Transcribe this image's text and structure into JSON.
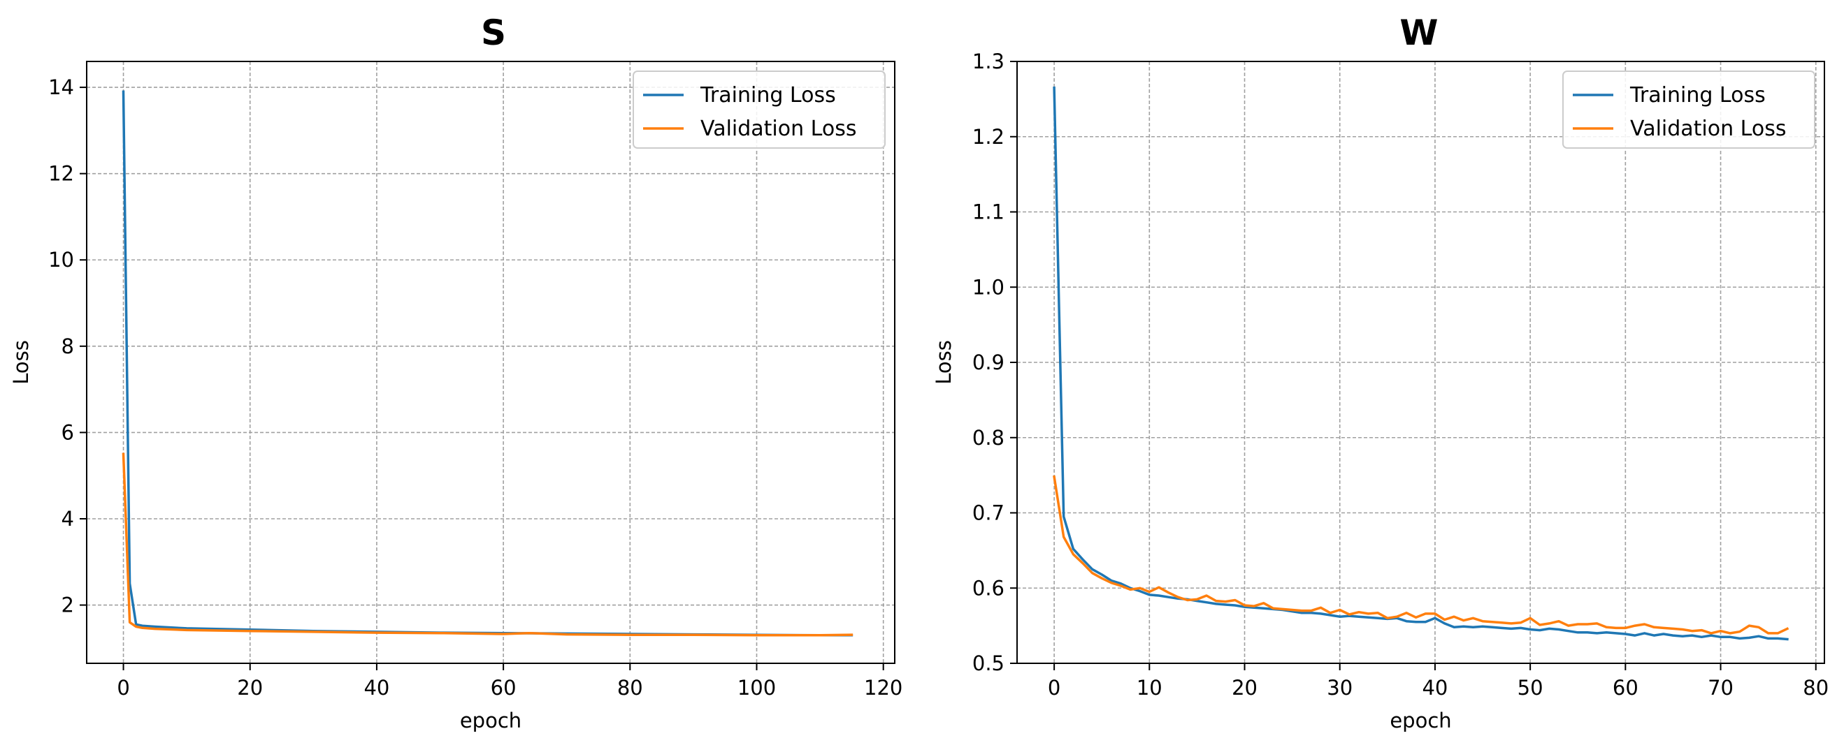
{
  "chart_data": [
    {
      "type": "line",
      "title": "S",
      "xlabel": "epoch",
      "ylabel": "Loss",
      "xlim": [
        -5.8,
        121.8
      ],
      "ylim": [
        0.65,
        14.6
      ],
      "xticks": [
        0,
        20,
        40,
        60,
        80,
        100,
        120
      ],
      "xtick_labels": [
        "0",
        "20",
        "40",
        "60",
        "80",
        "100",
        "120"
      ],
      "yticks": [
        2,
        4,
        6,
        8,
        10,
        12,
        14
      ],
      "ytick_labels": [
        "2",
        "4",
        "6",
        "8",
        "10",
        "12",
        "14"
      ],
      "grid": true,
      "legend_position": "upper right",
      "series": [
        {
          "name": "Training Loss",
          "color": "#1f77b4",
          "x": [
            0,
            1,
            2,
            3,
            5,
            10,
            20,
            30,
            40,
            50,
            60,
            70,
            80,
            90,
            100,
            110,
            115
          ],
          "y": [
            13.9,
            2.5,
            1.55,
            1.52,
            1.5,
            1.46,
            1.43,
            1.4,
            1.38,
            1.36,
            1.35,
            1.34,
            1.33,
            1.32,
            1.31,
            1.3,
            1.3
          ]
        },
        {
          "name": "Validation Loss",
          "color": "#ff7f0e",
          "x": [
            0,
            1,
            2,
            3,
            5,
            10,
            20,
            30,
            40,
            50,
            60,
            64,
            70,
            80,
            90,
            100,
            110,
            115
          ],
          "y": [
            5.5,
            1.6,
            1.5,
            1.47,
            1.45,
            1.42,
            1.4,
            1.38,
            1.36,
            1.35,
            1.33,
            1.35,
            1.32,
            1.31,
            1.31,
            1.3,
            1.3,
            1.31
          ]
        }
      ]
    },
    {
      "type": "line",
      "title": "W",
      "xlabel": "epoch",
      "ylabel": "Loss",
      "xlim": [
        -3.9,
        80.9
      ],
      "ylim": [
        0.5,
        1.3
      ],
      "xticks": [
        0,
        10,
        20,
        30,
        40,
        50,
        60,
        70,
        80
      ],
      "xtick_labels": [
        "0",
        "10",
        "20",
        "30",
        "40",
        "50",
        "60",
        "70",
        "80"
      ],
      "yticks": [
        0.5,
        0.6,
        0.7,
        0.8,
        0.9,
        1.0,
        1.1,
        1.2,
        1.3
      ],
      "ytick_labels": [
        "0.5",
        "0.6",
        "0.7",
        "0.8",
        "0.9",
        "1.0",
        "1.1",
        "1.2",
        "1.3"
      ],
      "grid": true,
      "legend_position": "upper right",
      "series": [
        {
          "name": "Training Loss",
          "color": "#1f77b4",
          "x": [
            0,
            1,
            2,
            3,
            4,
            5,
            6,
            7,
            8,
            9,
            10,
            11,
            12,
            13,
            14,
            15,
            16,
            17,
            18,
            19,
            20,
            21,
            22,
            23,
            24,
            25,
            26,
            27,
            28,
            29,
            30,
            31,
            32,
            33,
            34,
            35,
            36,
            37,
            38,
            39,
            40,
            41,
            42,
            43,
            44,
            45,
            46,
            47,
            48,
            49,
            50,
            51,
            52,
            53,
            54,
            55,
            56,
            57,
            58,
            59,
            60,
            61,
            62,
            63,
            64,
            65,
            66,
            67,
            68,
            69,
            70,
            71,
            72,
            73,
            74,
            75,
            76,
            77
          ],
          "y": [
            1.265,
            0.695,
            0.652,
            0.638,
            0.625,
            0.618,
            0.61,
            0.606,
            0.6,
            0.596,
            0.591,
            0.59,
            0.588,
            0.586,
            0.585,
            0.583,
            0.581,
            0.579,
            0.578,
            0.577,
            0.575,
            0.574,
            0.573,
            0.572,
            0.571,
            0.569,
            0.567,
            0.567,
            0.566,
            0.564,
            0.562,
            0.563,
            0.562,
            0.561,
            0.56,
            0.559,
            0.56,
            0.556,
            0.555,
            0.555,
            0.56,
            0.553,
            0.548,
            0.549,
            0.548,
            0.549,
            0.548,
            0.547,
            0.546,
            0.547,
            0.545,
            0.544,
            0.546,
            0.545,
            0.543,
            0.541,
            0.541,
            0.54,
            0.541,
            0.54,
            0.539,
            0.537,
            0.54,
            0.537,
            0.539,
            0.537,
            0.536,
            0.537,
            0.535,
            0.537,
            0.535,
            0.535,
            0.533,
            0.534,
            0.536,
            0.533,
            0.533,
            0.532
          ]
        },
        {
          "name": "Validation Loss",
          "color": "#ff7f0e",
          "x": [
            0,
            1,
            2,
            3,
            4,
            5,
            6,
            7,
            8,
            9,
            10,
            11,
            12,
            13,
            14,
            15,
            16,
            17,
            18,
            19,
            20,
            21,
            22,
            23,
            24,
            25,
            26,
            27,
            28,
            29,
            30,
            31,
            32,
            33,
            34,
            35,
            36,
            37,
            38,
            39,
            40,
            41,
            42,
            43,
            44,
            45,
            46,
            47,
            48,
            49,
            50,
            51,
            52,
            53,
            54,
            55,
            56,
            57,
            58,
            59,
            60,
            61,
            62,
            63,
            64,
            65,
            66,
            67,
            68,
            69,
            70,
            71,
            72,
            73,
            74,
            75,
            76,
            77
          ],
          "y": [
            0.748,
            0.668,
            0.645,
            0.633,
            0.62,
            0.613,
            0.607,
            0.603,
            0.598,
            0.6,
            0.595,
            0.601,
            0.594,
            0.588,
            0.584,
            0.585,
            0.59,
            0.583,
            0.582,
            0.584,
            0.577,
            0.576,
            0.58,
            0.573,
            0.572,
            0.571,
            0.57,
            0.57,
            0.574,
            0.567,
            0.571,
            0.565,
            0.568,
            0.566,
            0.567,
            0.56,
            0.562,
            0.567,
            0.561,
            0.566,
            0.566,
            0.558,
            0.562,
            0.557,
            0.56,
            0.556,
            0.555,
            0.554,
            0.553,
            0.554,
            0.56,
            0.551,
            0.553,
            0.556,
            0.55,
            0.552,
            0.552,
            0.553,
            0.548,
            0.547,
            0.547,
            0.55,
            0.552,
            0.548,
            0.547,
            0.546,
            0.545,
            0.543,
            0.544,
            0.54,
            0.543,
            0.54,
            0.542,
            0.55,
            0.548,
            0.54,
            0.54,
            0.546
          ]
        }
      ]
    }
  ]
}
